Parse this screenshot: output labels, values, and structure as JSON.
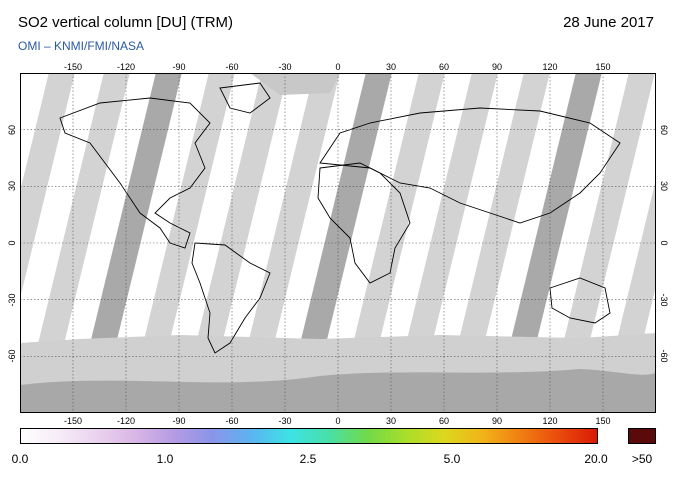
{
  "header": {
    "title": "SO2 vertical column [DU] (TRM)",
    "date": "28 June 2017",
    "credit": "OMI  –  KNMI/FMI/NASA"
  },
  "map": {
    "lon_ticks": [
      "-150",
      "-120",
      "-90",
      "-60",
      "-30",
      "0",
      "30",
      "60",
      "90",
      "120",
      "150"
    ],
    "lat_ticks": [
      "60",
      "30",
      "0",
      "-30",
      "-60"
    ]
  },
  "colorbar": {
    "labels": [
      "0.0",
      "1.0",
      "2.5",
      "5.0",
      "20.0"
    ],
    "overflow_label": ">50",
    "overflow_color": "#5a0a0a",
    "colors": [
      "#ffffff",
      "#f6ecf7",
      "#ead3ee",
      "#d9b6e6",
      "#b49be3",
      "#8a95e8",
      "#5ab4f0",
      "#3ee2e6",
      "#48e0a8",
      "#6fda4a",
      "#a8de2a",
      "#dcd81f",
      "#f0b418",
      "#f07e12",
      "#ea4a0c",
      "#d91906"
    ]
  }
}
